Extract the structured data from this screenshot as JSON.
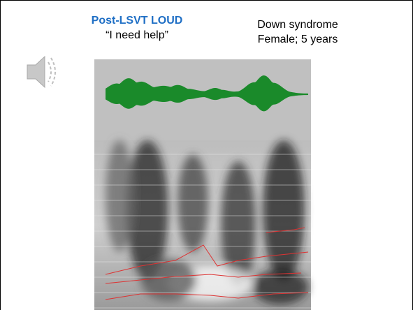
{
  "left_caption": {
    "title": "Post-LSVT LOUD",
    "quote": "“I need help”"
  },
  "right_caption": {
    "line1": "Down syndrome",
    "line2": "Female; 5 years"
  }
}
